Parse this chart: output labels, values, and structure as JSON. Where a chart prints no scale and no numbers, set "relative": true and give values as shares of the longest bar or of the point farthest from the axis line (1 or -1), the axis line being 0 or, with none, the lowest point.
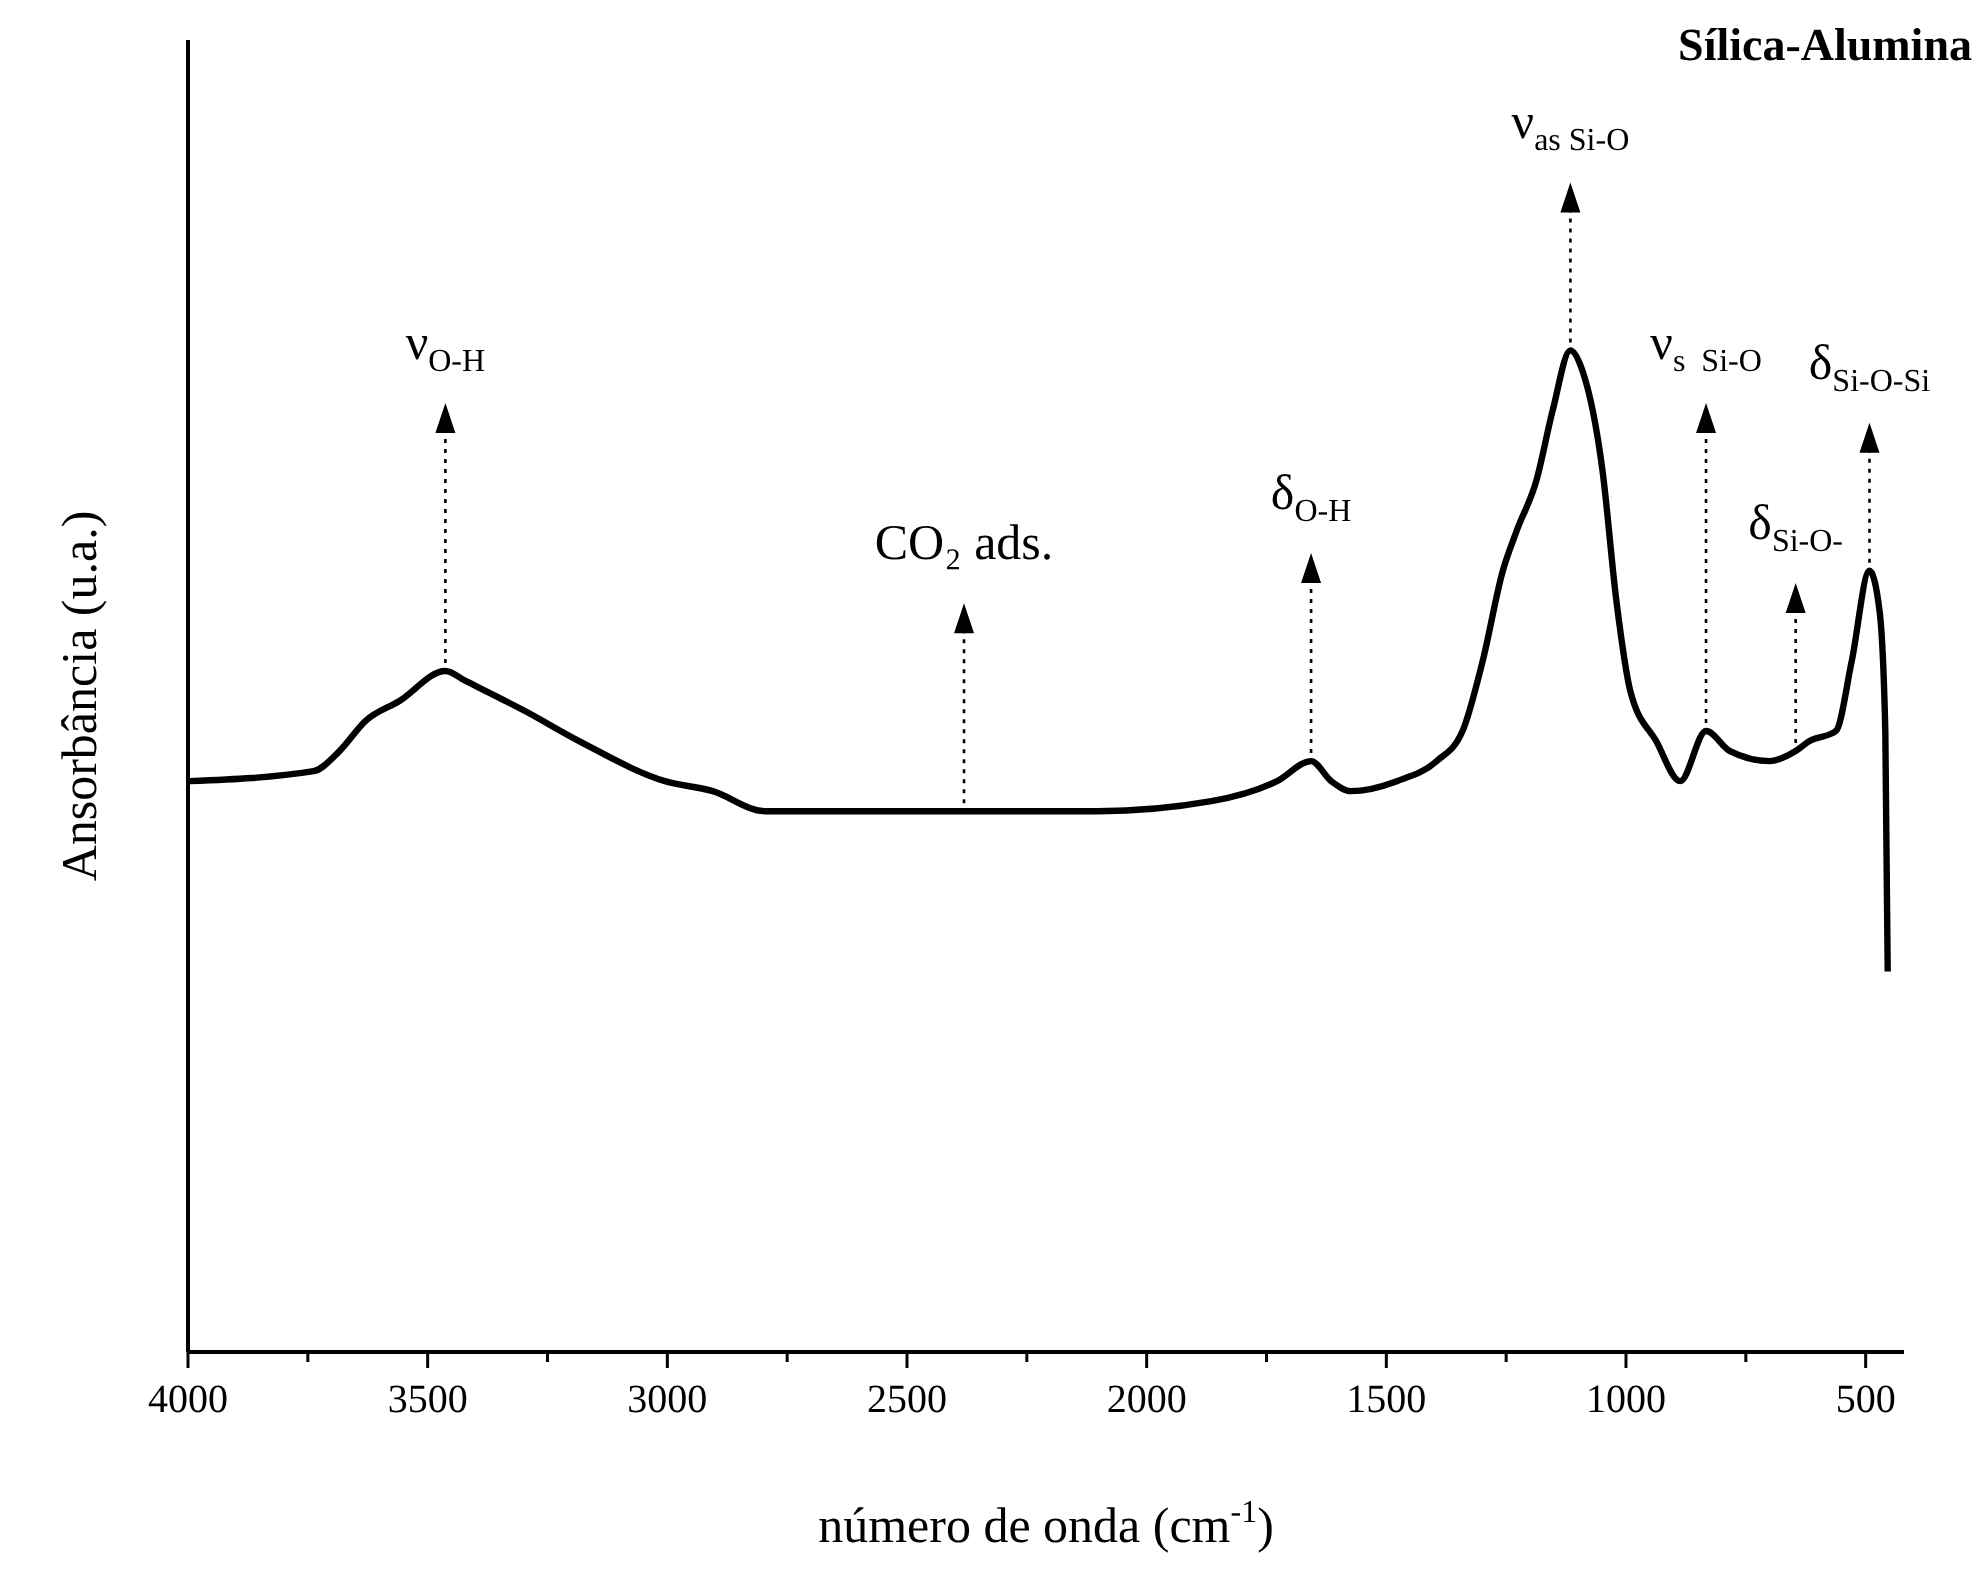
{
  "chart_data": {
    "type": "line",
    "title": "Sílica-Alumina",
    "xlabel": "número de onda (cm$^{-1}$)",
    "ylabel": "Ansorbância (u.a.)",
    "relative": true,
    "xlim": [
      4000,
      420
    ],
    "xticks": [
      4000,
      {
        "value": 3750,
        "label": null
      },
      3500,
      {
        "value": 3250,
        "label": null
      },
      3000,
      {
        "value": 2750,
        "label": null
      },
      2500,
      {
        "value": 2250,
        "label": null
      },
      2000,
      {
        "value": 1750,
        "label": null
      },
      1500,
      {
        "value": 1250,
        "label": null
      },
      1000,
      {
        "value": 750,
        "label": null
      },
      500
    ],
    "series": [
      {
        "color": "#000000",
        "x": [
          3996,
          3738,
          3684,
          3630,
          3559,
          3463,
          3421,
          3297,
          3184,
          3005,
          2905,
          2797,
          2631,
          2381,
          2102,
          1865,
          1728,
          1657,
          1615,
          1574,
          1478,
          1395,
          1341,
          1299,
          1257,
          1228,
          1187,
          1153,
          1116,
          1091,
          1049,
          1020,
          991,
          937,
          887,
          833,
          783,
          700,
          646,
          617,
          562,
          529,
          492,
          471,
          459,
          454
        ],
        "values": [
          0.57,
          0.58,
          0.6,
          0.63,
          0.65,
          0.68,
          0.67,
          0.64,
          0.61,
          0.57,
          0.56,
          0.54,
          0.54,
          0.54,
          0.54,
          0.55,
          0.57,
          0.59,
          0.57,
          0.56,
          0.57,
          0.59,
          0.62,
          0.69,
          0.78,
          0.82,
          0.87,
          0.94,
          1,
          0.98,
          0.88,
          0.75,
          0.66,
          0.61,
          0.57,
          0.62,
          0.6,
          0.59,
          0.6,
          0.61,
          0.62,
          0.69,
          0.78,
          0.74,
          0.62,
          0.38
        ]
      }
    ],
    "annotations": [
      {
        "text": "ν$_{O-H}$",
        "x": 3463,
        "y": 0.68
      },
      {
        "text": "CO₂ ads.",
        "x": 2381,
        "y": 0.54
      },
      {
        "text": "δ$_{O-H}$",
        "x": 1657,
        "y": 0.59
      },
      {
        "text": "ν$_{as Si-O}$",
        "x": 1116,
        "y": 1
      },
      {
        "text": "ν$_{s  Si-O}$",
        "x": 833,
        "y": 0.62
      },
      {
        "text": "δ$_{Si-O-}$",
        "x": 646,
        "y": 0.6
      },
      {
        "text": "δ$_{Si-O-Si}$",
        "x": 492,
        "y": 0.78
      }
    ]
  }
}
